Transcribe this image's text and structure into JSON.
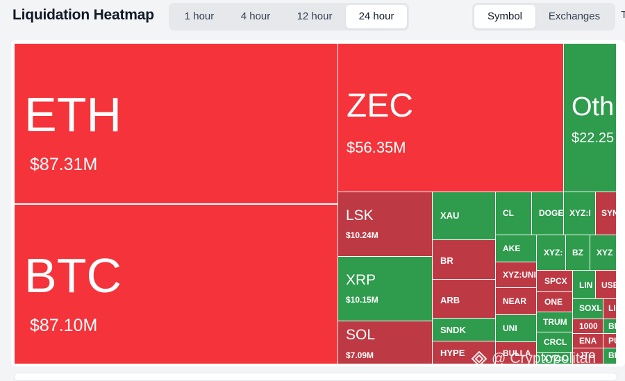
{
  "header": {
    "title": "Liquidation Heatmap",
    "time_ranges": [
      "1 hour",
      "4 hour",
      "12 hour",
      "24 hour"
    ],
    "active_time_range": "24 hour",
    "view_modes": [
      "Symbol",
      "Exchanges"
    ],
    "active_view_mode": "Symbol",
    "edge_text": "T"
  },
  "colors": {
    "bright_red": "#f5333a",
    "dark_red": "#bd3a44",
    "green": "#2e9b4d"
  },
  "tiles": [
    {
      "symbol": "ETH",
      "value": "$87.31M"
    },
    {
      "symbol": "BTC",
      "value": "$87.10M"
    },
    {
      "symbol": "ZEC",
      "value": "$56.35M"
    },
    {
      "symbol": "Oth",
      "value": "$22.25"
    },
    {
      "symbol": "LSK",
      "value": "$10.24M"
    },
    {
      "symbol": "XRP",
      "value": "$10.15M"
    },
    {
      "symbol": "SOL",
      "value": "$7.09M"
    },
    {
      "symbol": "XAU"
    },
    {
      "symbol": "BR"
    },
    {
      "symbol": "ARB"
    },
    {
      "symbol": "SNDK"
    },
    {
      "symbol": "HYPE"
    },
    {
      "symbol": "CL"
    },
    {
      "symbol": "DOGE"
    },
    {
      "symbol": "XYZ:I"
    },
    {
      "symbol": "SYN"
    },
    {
      "symbol": "AKE"
    },
    {
      "symbol": "XYZ:"
    },
    {
      "symbol": "BZ"
    },
    {
      "symbol": "XYZ"
    },
    {
      "symbol": "XYZ:UNI"
    },
    {
      "symbol": "SPCX"
    },
    {
      "symbol": "LIN"
    },
    {
      "symbol": "USE"
    },
    {
      "symbol": "NEAR"
    },
    {
      "symbol": "ONE"
    },
    {
      "symbol": "SOXL"
    },
    {
      "symbol": "LI"
    },
    {
      "symbol": "UNI"
    },
    {
      "symbol": "TRUM"
    },
    {
      "symbol": "1000"
    },
    {
      "symbol": "BI"
    },
    {
      "symbol": "CRCL"
    },
    {
      "symbol": "ENA"
    },
    {
      "symbol": "PU"
    },
    {
      "symbol": "BULLA"
    },
    {
      "symbol": "XYZ:C"
    },
    {
      "symbol": "JTO"
    },
    {
      "symbol": "BI"
    }
  ],
  "watermark": {
    "at": "@",
    "text": "Cryptopolitan"
  }
}
